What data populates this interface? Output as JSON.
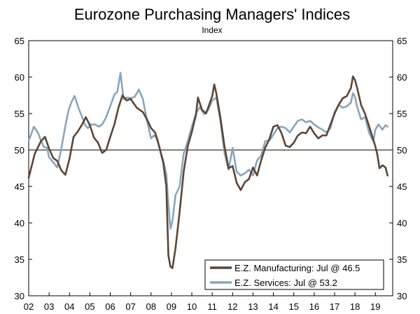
{
  "chart_data": {
    "type": "line",
    "title": "Eurozone Purchasing Managers' Indices",
    "subtitle": "Index",
    "ylim": [
      30,
      65
    ],
    "y_ticks": [
      30,
      35,
      40,
      45,
      50,
      55,
      60,
      65
    ],
    "x_range": [
      2002,
      2019.85
    ],
    "x_ticks": [
      {
        "label": "02",
        "value": 2002
      },
      {
        "label": "03",
        "value": 2003
      },
      {
        "label": "04",
        "value": 2004
      },
      {
        "label": "05",
        "value": 2005
      },
      {
        "label": "06",
        "value": 2006
      },
      {
        "label": "07",
        "value": 2007
      },
      {
        "label": "08",
        "value": 2008
      },
      {
        "label": "09",
        "value": 2009
      },
      {
        "label": "10",
        "value": 2010
      },
      {
        "label": "11",
        "value": 2011
      },
      {
        "label": "12",
        "value": 2012
      },
      {
        "label": "13",
        "value": 2013
      },
      {
        "label": "14",
        "value": 2014
      },
      {
        "label": "15",
        "value": 2015
      },
      {
        "label": "16",
        "value": 2016
      },
      {
        "label": "17",
        "value": 2017
      },
      {
        "label": "18",
        "value": 2018
      },
      {
        "label": "19",
        "value": 2019
      }
    ],
    "reference_line": 50,
    "grid": false,
    "legend_position": "bottom-right",
    "series": [
      {
        "name": "E.Z. Manufacturing: Jul @ 46.5",
        "color": "#5b4636",
        "points": [
          [
            2002.0,
            46.2
          ],
          [
            2002.3,
            49.5
          ],
          [
            2002.6,
            51.2
          ],
          [
            2002.8,
            51.8
          ],
          [
            2003.0,
            50.2
          ],
          [
            2003.2,
            48.9
          ],
          [
            2003.4,
            48.5
          ],
          [
            2003.6,
            47.2
          ],
          [
            2003.8,
            46.6
          ],
          [
            2004.0,
            48.8
          ],
          [
            2004.2,
            51.8
          ],
          [
            2004.4,
            52.5
          ],
          [
            2004.6,
            53.4
          ],
          [
            2004.8,
            54.5
          ],
          [
            2005.0,
            53.4
          ],
          [
            2005.2,
            51.7
          ],
          [
            2005.4,
            51.0
          ],
          [
            2005.6,
            49.6
          ],
          [
            2005.8,
            50.0
          ],
          [
            2006.0,
            51.8
          ],
          [
            2006.2,
            53.5
          ],
          [
            2006.4,
            55.8
          ],
          [
            2006.6,
            57.5
          ],
          [
            2006.8,
            56.8
          ],
          [
            2007.0,
            57.0
          ],
          [
            2007.3,
            55.8
          ],
          [
            2007.6,
            55.2
          ],
          [
            2007.8,
            54.2
          ],
          [
            2008.0,
            53.0
          ],
          [
            2008.2,
            52.4
          ],
          [
            2008.4,
            50.5
          ],
          [
            2008.6,
            48.2
          ],
          [
            2008.75,
            45.0
          ],
          [
            2008.85,
            35.5
          ],
          [
            2008.95,
            34.0
          ],
          [
            2009.05,
            33.8
          ],
          [
            2009.2,
            36.5
          ],
          [
            2009.4,
            41.5
          ],
          [
            2009.6,
            47.0
          ],
          [
            2009.8,
            50.5
          ],
          [
            2010.0,
            52.5
          ],
          [
            2010.2,
            54.8
          ],
          [
            2010.3,
            57.2
          ],
          [
            2010.5,
            55.5
          ],
          [
            2010.7,
            55.0
          ],
          [
            2010.85,
            56.2
          ],
          [
            2011.0,
            57.4
          ],
          [
            2011.1,
            59.0
          ],
          [
            2011.2,
            57.8
          ],
          [
            2011.4,
            54.5
          ],
          [
            2011.6,
            50.5
          ],
          [
            2011.8,
            47.5
          ],
          [
            2012.0,
            47.8
          ],
          [
            2012.2,
            45.5
          ],
          [
            2012.4,
            44.5
          ],
          [
            2012.6,
            45.6
          ],
          [
            2012.8,
            46.0
          ],
          [
            2013.0,
            47.6
          ],
          [
            2013.2,
            46.5
          ],
          [
            2013.4,
            48.6
          ],
          [
            2013.6,
            50.3
          ],
          [
            2013.8,
            51.5
          ],
          [
            2014.0,
            53.2
          ],
          [
            2014.2,
            53.4
          ],
          [
            2014.4,
            52.3
          ],
          [
            2014.6,
            50.6
          ],
          [
            2014.8,
            50.4
          ],
          [
            2015.0,
            51.0
          ],
          [
            2015.2,
            52.0
          ],
          [
            2015.4,
            52.4
          ],
          [
            2015.6,
            52.3
          ],
          [
            2015.8,
            53.2
          ],
          [
            2016.0,
            52.3
          ],
          [
            2016.2,
            51.6
          ],
          [
            2016.4,
            52.0
          ],
          [
            2016.6,
            52.0
          ],
          [
            2016.8,
            53.5
          ],
          [
            2017.0,
            55.0
          ],
          [
            2017.2,
            56.2
          ],
          [
            2017.4,
            57.1
          ],
          [
            2017.6,
            57.4
          ],
          [
            2017.8,
            58.5
          ],
          [
            2017.9,
            60.1
          ],
          [
            2018.0,
            59.6
          ],
          [
            2018.1,
            58.6
          ],
          [
            2018.3,
            56.2
          ],
          [
            2018.5,
            54.9
          ],
          [
            2018.7,
            53.2
          ],
          [
            2018.9,
            51.4
          ],
          [
            2019.0,
            50.5
          ],
          [
            2019.1,
            49.3
          ],
          [
            2019.2,
            47.5
          ],
          [
            2019.35,
            47.9
          ],
          [
            2019.5,
            47.6
          ],
          [
            2019.6,
            46.5
          ]
        ]
      },
      {
        "name": "E.Z. Services: Jul @ 53.2",
        "color": "#8aa6ba",
        "points": [
          [
            2002.0,
            51.3
          ],
          [
            2002.1,
            52.0
          ],
          [
            2002.25,
            53.2
          ],
          [
            2002.45,
            52.4
          ],
          [
            2002.6,
            51.3
          ],
          [
            2002.75,
            50.4
          ],
          [
            2002.9,
            50.3
          ],
          [
            2003.0,
            49.0
          ],
          [
            2003.2,
            48.3
          ],
          [
            2003.4,
            47.6
          ],
          [
            2003.6,
            50.2
          ],
          [
            2003.8,
            53.3
          ],
          [
            2003.95,
            55.4
          ],
          [
            2004.1,
            56.6
          ],
          [
            2004.25,
            57.4
          ],
          [
            2004.45,
            55.7
          ],
          [
            2004.6,
            54.7
          ],
          [
            2004.75,
            53.5
          ],
          [
            2004.9,
            53.0
          ],
          [
            2005.05,
            53.5
          ],
          [
            2005.25,
            53.5
          ],
          [
            2005.45,
            53.2
          ],
          [
            2005.6,
            53.5
          ],
          [
            2005.8,
            54.5
          ],
          [
            2006.0,
            56.0
          ],
          [
            2006.2,
            57.6
          ],
          [
            2006.35,
            58.0
          ],
          [
            2006.5,
            60.6
          ],
          [
            2006.65,
            57.0
          ],
          [
            2006.85,
            57.2
          ],
          [
            2007.0,
            57.1
          ],
          [
            2007.2,
            57.3
          ],
          [
            2007.4,
            58.3
          ],
          [
            2007.6,
            57.0
          ],
          [
            2007.8,
            54.0
          ],
          [
            2008.0,
            51.6
          ],
          [
            2008.15,
            52.0
          ],
          [
            2008.3,
            51.6
          ],
          [
            2008.45,
            49.9
          ],
          [
            2008.6,
            48.5
          ],
          [
            2008.75,
            46.7
          ],
          [
            2008.85,
            42.5
          ],
          [
            2008.95,
            39.2
          ],
          [
            2009.05,
            40.3
          ],
          [
            2009.2,
            43.8
          ],
          [
            2009.4,
            45.0
          ],
          [
            2009.6,
            49.5
          ],
          [
            2009.8,
            51.2
          ],
          [
            2010.0,
            53.2
          ],
          [
            2010.2,
            55.0
          ],
          [
            2010.4,
            55.9
          ],
          [
            2010.6,
            54.9
          ],
          [
            2010.8,
            55.5
          ],
          [
            2011.0,
            56.8
          ],
          [
            2011.2,
            57.2
          ],
          [
            2011.4,
            54.0
          ],
          [
            2011.6,
            49.6
          ],
          [
            2011.8,
            47.3
          ],
          [
            2012.0,
            50.3
          ],
          [
            2012.2,
            47.0
          ],
          [
            2012.4,
            46.5
          ],
          [
            2012.6,
            46.8
          ],
          [
            2012.8,
            47.3
          ],
          [
            2013.0,
            46.5
          ],
          [
            2013.2,
            48.6
          ],
          [
            2013.4,
            49.2
          ],
          [
            2013.6,
            51.2
          ],
          [
            2013.8,
            51.3
          ],
          [
            2014.0,
            52.1
          ],
          [
            2014.2,
            53.0
          ],
          [
            2014.4,
            53.2
          ],
          [
            2014.6,
            53.0
          ],
          [
            2014.8,
            52.4
          ],
          [
            2015.0,
            53.2
          ],
          [
            2015.2,
            54.0
          ],
          [
            2015.4,
            54.2
          ],
          [
            2015.6,
            53.8
          ],
          [
            2015.8,
            54.0
          ],
          [
            2016.0,
            53.5
          ],
          [
            2016.2,
            53.1
          ],
          [
            2016.4,
            52.8
          ],
          [
            2016.6,
            52.4
          ],
          [
            2016.8,
            53.0
          ],
          [
            2017.0,
            55.2
          ],
          [
            2017.2,
            56.2
          ],
          [
            2017.4,
            55.8
          ],
          [
            2017.6,
            56.0
          ],
          [
            2017.8,
            56.5
          ],
          [
            2017.9,
            57.8
          ],
          [
            2018.0,
            57.3
          ],
          [
            2018.1,
            56.0
          ],
          [
            2018.3,
            54.2
          ],
          [
            2018.5,
            54.5
          ],
          [
            2018.7,
            52.3
          ],
          [
            2018.9,
            51.2
          ],
          [
            2019.0,
            52.8
          ],
          [
            2019.15,
            53.5
          ],
          [
            2019.35,
            52.8
          ],
          [
            2019.5,
            53.4
          ],
          [
            2019.6,
            53.2
          ]
        ]
      }
    ]
  }
}
